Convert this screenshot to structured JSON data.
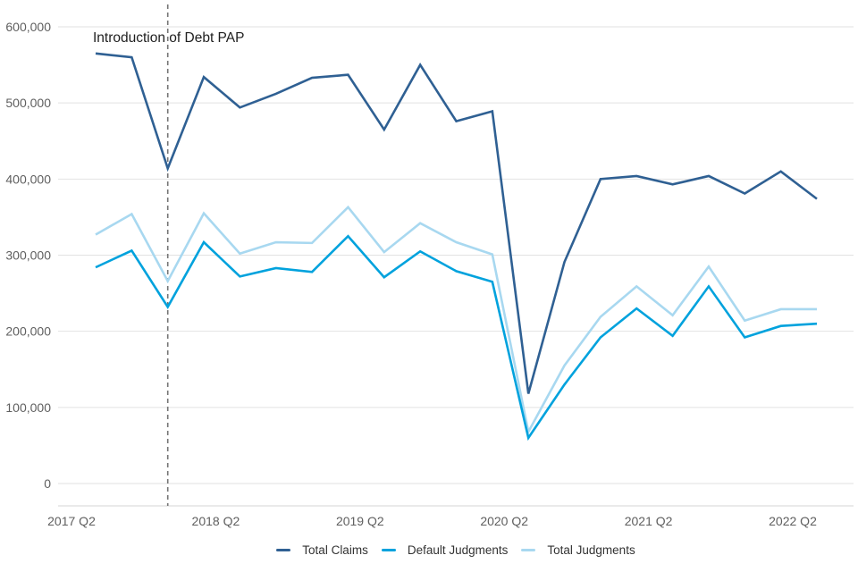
{
  "chart_data": {
    "type": "line",
    "title": "",
    "xlabel": "",
    "ylabel": "",
    "ylim": [
      0,
      600000
    ],
    "grid": "horizontal",
    "legend_position": "bottom-center",
    "categories": [
      "2017 Q2",
      "2017 Q3",
      "2017 Q4",
      "2018 Q1",
      "2018 Q2",
      "2018 Q3",
      "2018 Q4",
      "2019 Q1",
      "2019 Q2",
      "2019 Q3",
      "2019 Q4",
      "2020 Q1",
      "2020 Q2",
      "2020 Q3",
      "2020 Q4",
      "2021 Q1",
      "2021 Q2",
      "2021 Q3",
      "2021 Q4",
      "2022 Q1",
      "2022 Q2"
    ],
    "series": [
      {
        "name": "Total Claims",
        "color": "#2f6093",
        "values": [
          565000,
          560000,
          414000,
          534000,
          494000,
          512000,
          533000,
          537000,
          465000,
          550000,
          476000,
          489000,
          118000,
          291000,
          400000,
          404000,
          393000,
          404000,
          381000,
          410000,
          374000
        ]
      },
      {
        "name": "Default Judgments",
        "color": "#00a2dd",
        "values": [
          284000,
          306000,
          232000,
          317000,
          272000,
          283000,
          278000,
          325000,
          271000,
          305000,
          279000,
          265000,
          60000,
          130000,
          192000,
          230000,
          194000,
          259000,
          192000,
          207000,
          210000
        ]
      },
      {
        "name": "Total Judgments",
        "color": "#a8d8f0",
        "values": [
          327000,
          354000,
          266000,
          355000,
          302000,
          317000,
          316000,
          363000,
          304000,
          342000,
          317000,
          301000,
          68000,
          155000,
          219000,
          259000,
          221000,
          285000,
          214000,
          229000,
          229000
        ]
      }
    ],
    "x_axis": {
      "ticks": [
        {
          "index": 0,
          "label": "2017 Q2"
        },
        {
          "index": 4,
          "label": "2018 Q2"
        },
        {
          "index": 8,
          "label": "2019 Q2"
        },
        {
          "index": 12,
          "label": "2020 Q2"
        },
        {
          "index": 16,
          "label": "2021 Q2"
        },
        {
          "index": 20,
          "label": "2022 Q2"
        }
      ]
    },
    "y_axis": {
      "ticks": [
        {
          "value": 0,
          "label": "0"
        },
        {
          "value": 100000,
          "label": "100,000"
        },
        {
          "value": 200000,
          "label": "200,000"
        },
        {
          "value": 300000,
          "label": "300,000"
        },
        {
          "value": 400000,
          "label": "400,000"
        },
        {
          "value": 500000,
          "label": "500,000"
        },
        {
          "value": 600000,
          "label": "600,000"
        }
      ]
    },
    "annotation": {
      "text": "Introduction of Debt PAP",
      "category": "2017 Q4",
      "category_index": 2,
      "line_style": "dashed"
    },
    "style": {
      "background": "#ffffff",
      "gridline": "#e2e2e2",
      "axis_line": "#d4d4d4",
      "reference_line": "#757575",
      "tick_label_color": "#5f5f5f",
      "annotation_text_color": "#1f1f1f",
      "legend_text_color": "#333333"
    }
  }
}
